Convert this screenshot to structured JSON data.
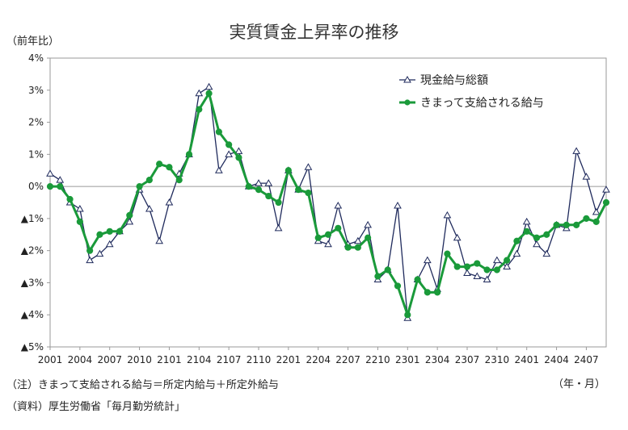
{
  "chart_data": {
    "type": "line",
    "title": "実質賃金上昇率の推移",
    "ylabel": "（前年比）",
    "period_label": "（年・月）",
    "notes": [
      "（注）きまって支給される給与＝所定内給与＋所定外給与",
      "（資料）厚生労働省「毎月勤労統計」"
    ],
    "ylim": [
      -5,
      4
    ],
    "yticks": [
      4,
      3,
      2,
      1,
      0,
      -1,
      -2,
      -3,
      -4,
      -5
    ],
    "ytick_labels": [
      "4%",
      "3%",
      "2%",
      "1%",
      "0%",
      "▲1%",
      "▲2%",
      "▲3%",
      "▲4%",
      "▲5%"
    ],
    "x": [
      "2001",
      "2002",
      "2003",
      "2004",
      "2005",
      "2006",
      "2007",
      "2008",
      "2009",
      "2010",
      "2011",
      "2012",
      "2101",
      "2102",
      "2103",
      "2104",
      "2105",
      "2106",
      "2107",
      "2108",
      "2109",
      "2110",
      "2111",
      "2112",
      "2201",
      "2202",
      "2203",
      "2204",
      "2205",
      "2206",
      "2207",
      "2208",
      "2209",
      "2210",
      "2211",
      "2212",
      "2301",
      "2302",
      "2303",
      "2304",
      "2305",
      "2306",
      "2307",
      "2308",
      "2309",
      "2310",
      "2311",
      "2312",
      "2401",
      "2402",
      "2403",
      "2404",
      "2405",
      "2406",
      "2407",
      "2408",
      "2409"
    ],
    "xtick_labels": [
      "2001",
      "2004",
      "2007",
      "2010",
      "2101",
      "2104",
      "2107",
      "2110",
      "2201",
      "2204",
      "2207",
      "2210",
      "2301",
      "2304",
      "2307",
      "2310",
      "2401",
      "2404",
      "2407"
    ],
    "legend_position": "top-right",
    "grid": false,
    "series": [
      {
        "name": "現金給与総額",
        "color": "#1f2a5c",
        "marker": "triangle-open",
        "values": [
          0.4,
          0.2,
          -0.5,
          -0.7,
          -2.3,
          -2.1,
          -1.8,
          -1.4,
          -1.1,
          -0.1,
          -0.7,
          -1.7,
          -0.5,
          0.4,
          1.0,
          2.9,
          3.1,
          0.5,
          1.0,
          1.1,
          0.0,
          0.1,
          0.1,
          -1.3,
          0.5,
          -0.1,
          0.6,
          -1.7,
          -1.8,
          -0.6,
          -1.8,
          -1.7,
          -1.2,
          -2.9,
          -2.6,
          -0.6,
          -4.1,
          -2.9,
          -2.3,
          -3.2,
          -0.9,
          -1.6,
          -2.7,
          -2.8,
          -2.9,
          -2.3,
          -2.5,
          -2.1,
          -1.1,
          -1.8,
          -2.1,
          -1.2,
          -1.3,
          1.1,
          0.3,
          -0.8,
          -0.1
        ]
      },
      {
        "name": "きまって支給される給与",
        "color": "#1a9a3a",
        "marker": "circle-filled",
        "values": [
          0.0,
          0.0,
          -0.4,
          -1.1,
          -2.0,
          -1.5,
          -1.4,
          -1.4,
          -0.9,
          0.0,
          0.2,
          0.7,
          0.6,
          0.2,
          1.0,
          2.4,
          2.9,
          1.7,
          1.3,
          0.9,
          0.0,
          -0.1,
          -0.3,
          -0.5,
          0.5,
          -0.1,
          -0.2,
          -1.6,
          -1.5,
          -1.3,
          -1.9,
          -1.9,
          -1.6,
          -2.8,
          -2.6,
          -3.1,
          -4.0,
          -2.9,
          -3.3,
          -3.3,
          -2.1,
          -2.5,
          -2.5,
          -2.4,
          -2.6,
          -2.6,
          -2.3,
          -1.7,
          -1.4,
          -1.6,
          -1.5,
          -1.2,
          -1.2,
          -1.2,
          -1.0,
          -1.1,
          -0.5
        ]
      }
    ]
  }
}
